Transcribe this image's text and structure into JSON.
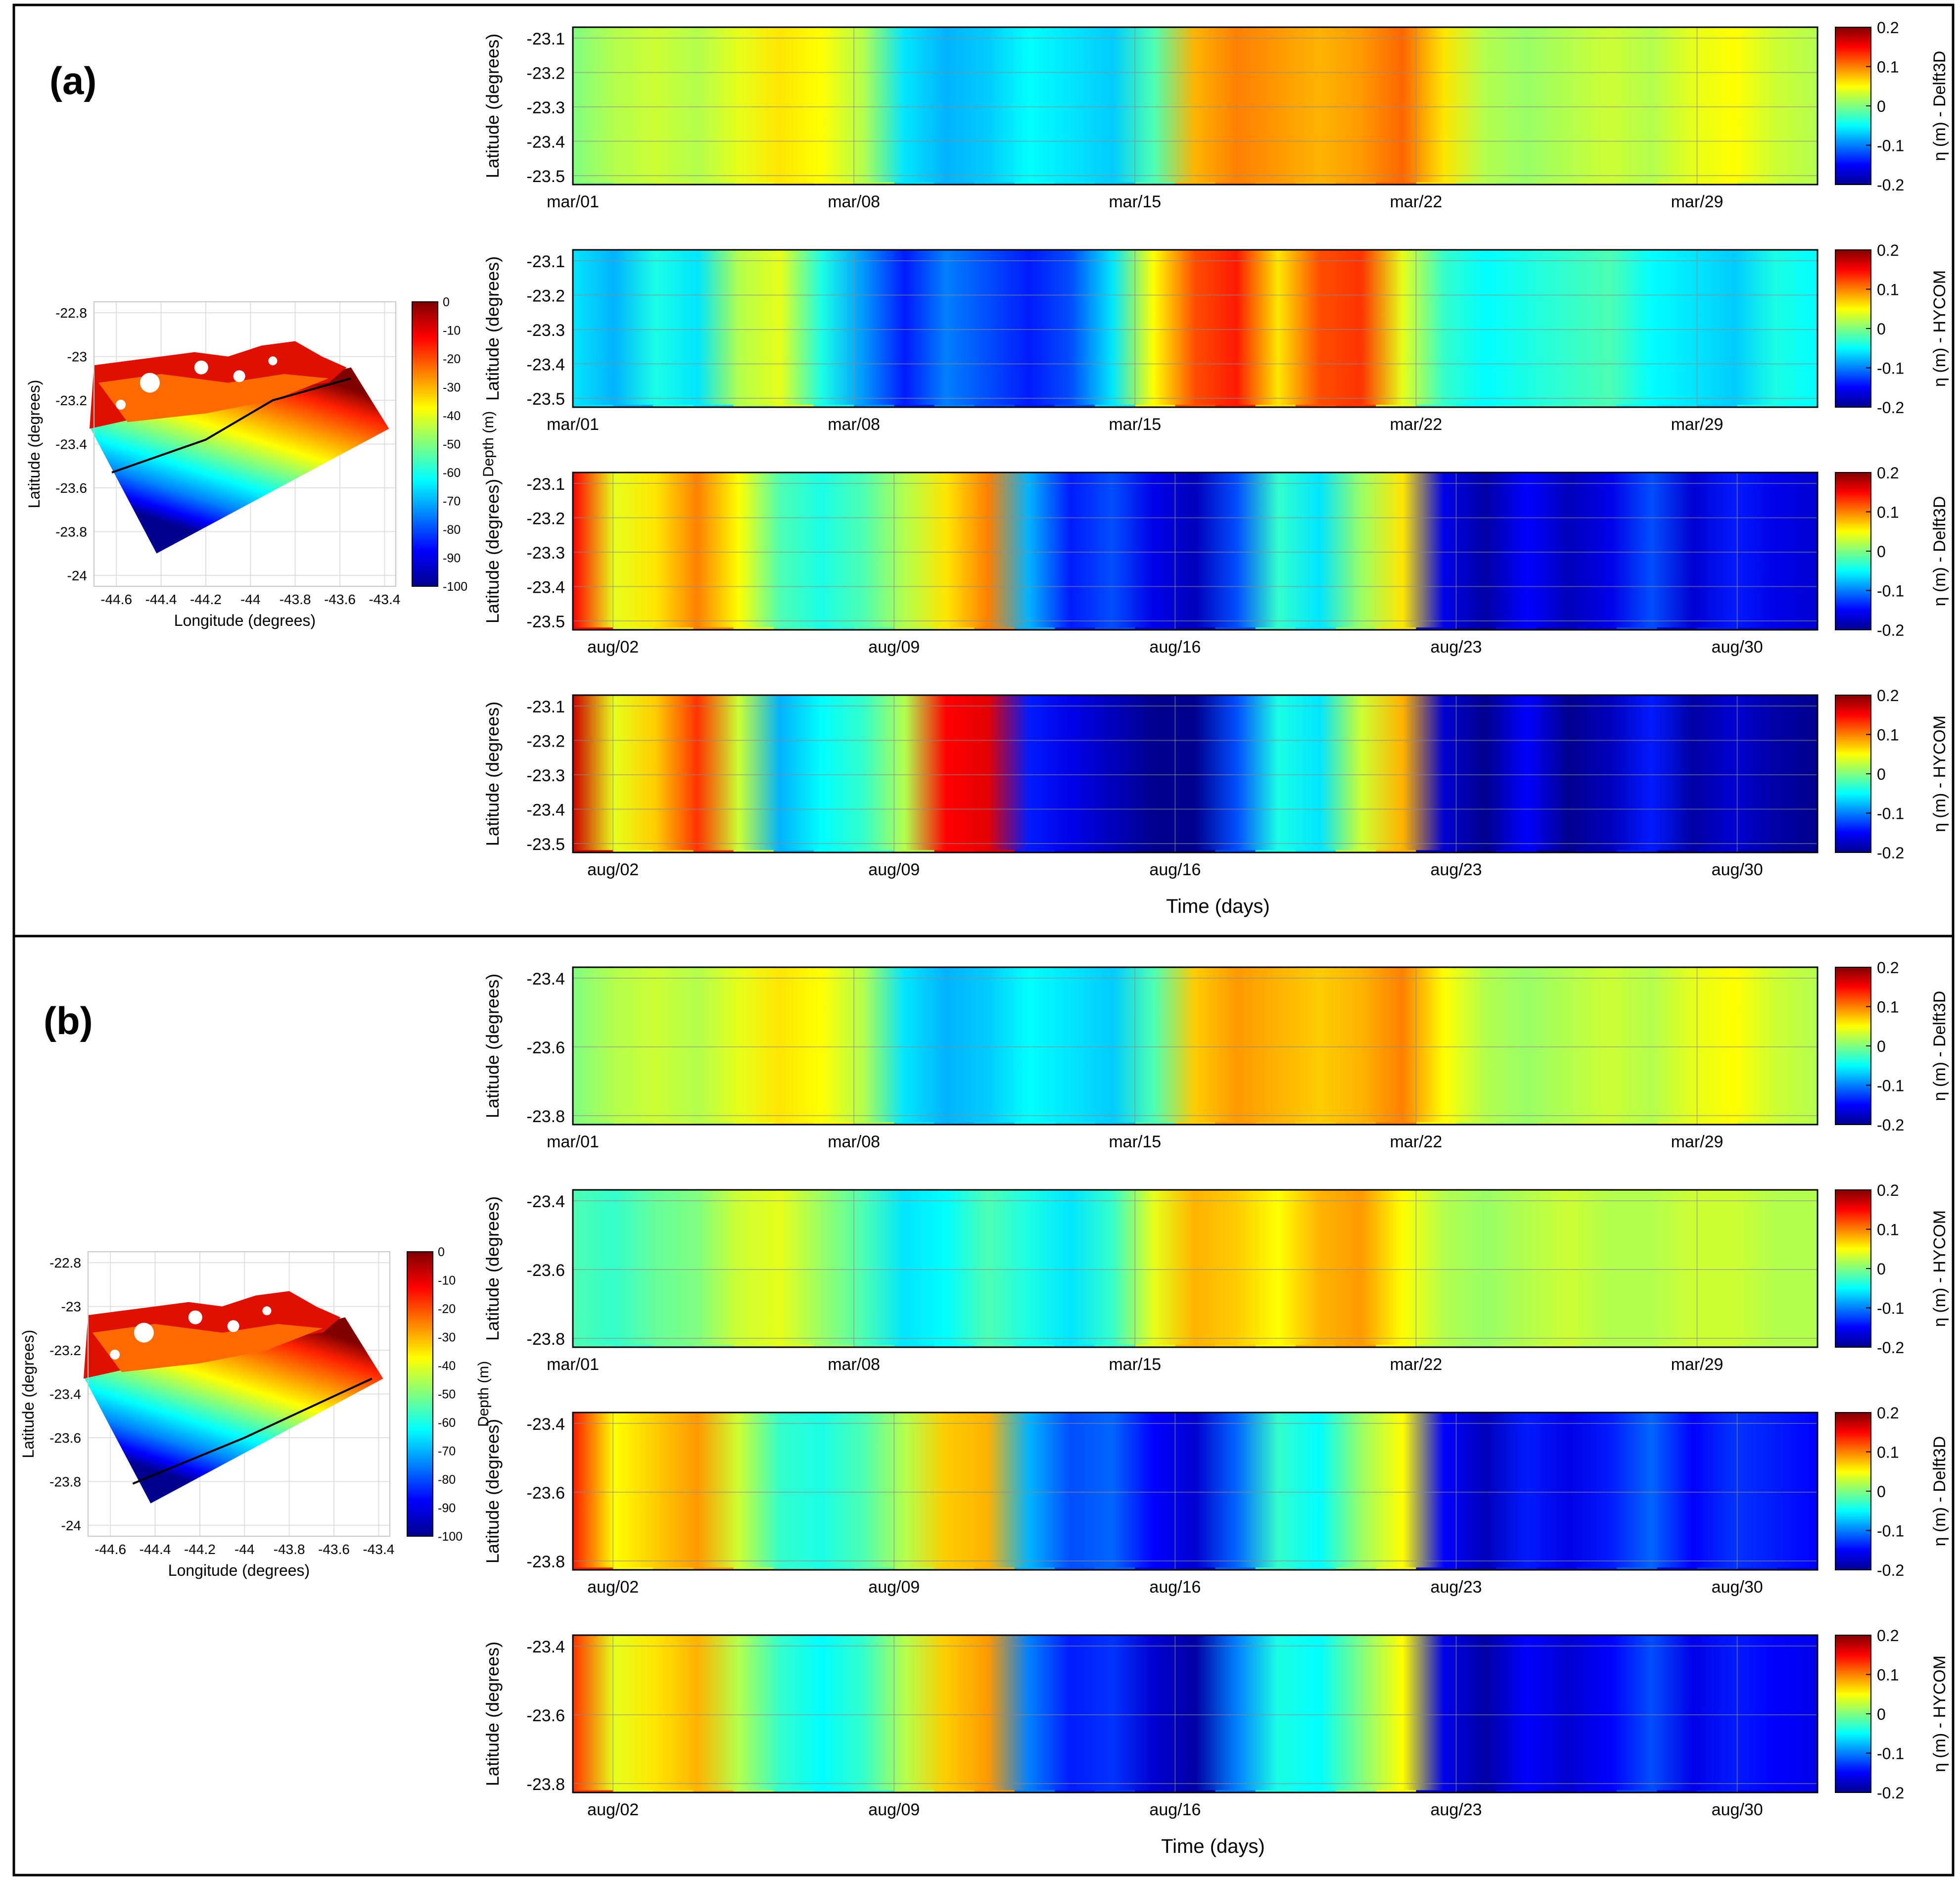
{
  "colors": {
    "frame": "#000000",
    "background": "#ffffff",
    "grid": "#8c8c8c",
    "colormap": [
      "#00008f",
      "#0000ff",
      "#0080ff",
      "#00ffff",
      "#80ff80",
      "#ffff00",
      "#ff8000",
      "#ff0000",
      "#800000"
    ]
  },
  "panels": [
    {
      "label": "(a)",
      "map": {
        "ylabel": "Latitude (degrees)",
        "xlabel": "Longitude (degrees)",
        "x_ticks": [
          "-44.6",
          "-44.4",
          "-44.2",
          "-44",
          "-43.8",
          "-43.6",
          "-43.4"
        ],
        "y_ticks": [
          "-22.8",
          "-23",
          "-23.2",
          "-23.4",
          "-23.6",
          "-23.8",
          "-24"
        ],
        "colorbar_label": "Depth (m)",
        "colorbar_ticks": [
          "0",
          "-10",
          "-20",
          "-30",
          "-40",
          "-50",
          "-60",
          "-70",
          "-80",
          "-90",
          "-100"
        ],
        "transect": [
          [
            -44.62,
            -23.53
          ],
          [
            -44.2,
            -23.38
          ],
          [
            -43.9,
            -23.2
          ],
          [
            -43.55,
            -23.1
          ]
        ]
      }
    },
    {
      "label": "(b)",
      "map": {
        "ylabel": "Latitude (degrees)",
        "xlabel": "Longitude (degrees)",
        "x_ticks": [
          "-44.6",
          "-44.4",
          "-44.2",
          "-44",
          "-43.8",
          "-43.6",
          "-43.4"
        ],
        "y_ticks": [
          "-22.8",
          "-23",
          "-23.2",
          "-23.4",
          "-23.6",
          "-23.8",
          "-24"
        ],
        "colorbar_label": "Depth (m)",
        "colorbar_ticks": [
          "0",
          "-10",
          "-20",
          "-30",
          "-40",
          "-50",
          "-60",
          "-70",
          "-80",
          "-90",
          "-100"
        ],
        "transect": [
          [
            -44.5,
            -23.81
          ],
          [
            -44.0,
            -23.6
          ],
          [
            -43.6,
            -23.41
          ],
          [
            -43.43,
            -23.33
          ]
        ]
      }
    }
  ],
  "chart_data": [
    {
      "type": "heatmap",
      "panel": "(a)",
      "source": "Delft3D",
      "ylabel": "Latitude (degrees)",
      "cbar_label": "η (m) - Delft3D",
      "y_ticks": [
        "-23.1",
        "-23.2",
        "-23.3",
        "-23.4",
        "-23.5"
      ],
      "x_ticks": [
        "mar/01",
        "mar/08",
        "mar/15",
        "mar/22",
        "mar/29"
      ],
      "cbar_ticks": [
        "0.2",
        "0.1",
        "0",
        "-0.1",
        "-0.2"
      ],
      "clim": [
        -0.2,
        0.2
      ],
      "eta": [
        0.0,
        0.02,
        0.03,
        0.02,
        0.04,
        0.06,
        0.05,
        0.02,
        -0.06,
        -0.08,
        -0.07,
        -0.05,
        -0.06,
        -0.07,
        -0.02,
        0.08,
        0.1,
        0.09,
        0.08,
        0.09,
        0.11,
        0.06,
        0.02,
        0.01,
        0.02,
        0.03,
        0.02,
        0.04,
        0.05,
        0.03,
        0.02
      ]
    },
    {
      "type": "heatmap",
      "panel": "(a)",
      "source": "HYCOM",
      "ylabel": "Latitude (degrees)",
      "cbar_label": "η (m) - HYCOM",
      "y_ticks": [
        "-23.1",
        "-23.2",
        "-23.3",
        "-23.4",
        "-23.5"
      ],
      "x_ticks": [
        "mar/01",
        "mar/08",
        "mar/15",
        "mar/22",
        "mar/29"
      ],
      "cbar_ticks": [
        "0.2",
        "0.1",
        "0",
        "-0.1",
        "-0.2"
      ],
      "clim": [
        -0.2,
        0.2
      ],
      "eta": [
        -0.06,
        -0.08,
        -0.04,
        -0.06,
        0.02,
        0.04,
        -0.04,
        -0.09,
        -0.14,
        -0.1,
        -0.12,
        -0.14,
        -0.12,
        -0.06,
        0.05,
        0.12,
        0.14,
        0.06,
        0.12,
        0.13,
        0.04,
        -0.03,
        -0.05,
        -0.04,
        -0.03,
        -0.02,
        -0.05,
        -0.06,
        -0.07,
        -0.04,
        -0.05
      ]
    },
    {
      "type": "heatmap",
      "panel": "(a)",
      "source": "Delft3D",
      "ylabel": "Latitude (degrees)",
      "cbar_label": "η (m) - Delft3D",
      "y_ticks": [
        "-23.1",
        "-23.2",
        "-23.3",
        "-23.4",
        "-23.5"
      ],
      "x_ticks": [
        "aug/02",
        "aug/09",
        "aug/16",
        "aug/23",
        "aug/30"
      ],
      "cbar_ticks": [
        "0.2",
        "0.1",
        "0",
        "-0.1",
        "-0.2"
      ],
      "clim": [
        -0.2,
        0.2
      ],
      "eta": [
        0.15,
        0.04,
        0.06,
        0.1,
        0.05,
        -0.02,
        -0.04,
        -0.02,
        0.02,
        0.06,
        0.1,
        -0.08,
        -0.14,
        -0.12,
        -0.16,
        -0.18,
        -0.12,
        -0.03,
        -0.06,
        0.01,
        0.06,
        -0.16,
        -0.19,
        -0.15,
        -0.18,
        -0.16,
        -0.12,
        -0.17,
        -0.14,
        -0.16,
        -0.17
      ]
    },
    {
      "type": "heatmap",
      "panel": "(a)",
      "source": "HYCOM",
      "ylabel": "Latitude (degrees)",
      "cbar_label": "η (m) - HYCOM",
      "y_ticks": [
        "-23.1",
        "-23.2",
        "-23.3",
        "-23.4",
        "-23.5"
      ],
      "x_ticks": [
        "aug/02",
        "aug/09",
        "aug/16",
        "aug/23",
        "aug/30"
      ],
      "cbar_ticks": [
        "0.2",
        "0.1",
        "0",
        "-0.1",
        "-0.2"
      ],
      "clim": [
        -0.2,
        0.2
      ],
      "eta": [
        0.17,
        0.04,
        0.07,
        0.13,
        0.03,
        -0.08,
        -0.05,
        -0.03,
        0.02,
        0.15,
        0.16,
        -0.14,
        -0.16,
        -0.18,
        -0.2,
        -0.2,
        -0.12,
        -0.04,
        -0.06,
        0.03,
        0.08,
        -0.17,
        -0.2,
        -0.15,
        -0.2,
        -0.18,
        -0.14,
        -0.19,
        -0.17,
        -0.19,
        -0.2
      ]
    },
    {
      "type": "heatmap",
      "panel": "(b)",
      "source": "Delft3D",
      "ylabel": "Latitude (degrees)",
      "cbar_label": "η (m) - Delft3D",
      "y_ticks": [
        "-23.4",
        "-23.6",
        "-23.8"
      ],
      "x_ticks": [
        "mar/01",
        "mar/08",
        "mar/15",
        "mar/22",
        "mar/29"
      ],
      "cbar_ticks": [
        "0.2",
        "0.1",
        "0",
        "-0.1",
        "-0.2"
      ],
      "clim": [
        -0.2,
        0.2
      ],
      "eta": [
        0.0,
        0.02,
        0.03,
        0.02,
        0.04,
        0.06,
        0.05,
        0.02,
        -0.06,
        -0.08,
        -0.07,
        -0.05,
        -0.06,
        -0.07,
        -0.02,
        0.07,
        0.09,
        0.08,
        0.07,
        0.08,
        0.1,
        0.05,
        0.02,
        0.01,
        0.02,
        0.03,
        0.02,
        0.04,
        0.05,
        0.03,
        0.02
      ]
    },
    {
      "type": "heatmap",
      "panel": "(b)",
      "source": "HYCOM",
      "ylabel": "Latitude (degrees)",
      "cbar_label": "η (m) - HYCOM",
      "y_ticks": [
        "-23.4",
        "-23.6",
        "-23.8"
      ],
      "x_ticks": [
        "mar/01",
        "mar/08",
        "mar/15",
        "mar/22",
        "mar/29"
      ],
      "cbar_ticks": [
        "0.2",
        "0.1",
        "0",
        "-0.1",
        "-0.2"
      ],
      "clim": [
        -0.2,
        0.2
      ],
      "eta": [
        -0.02,
        -0.03,
        -0.01,
        0.0,
        0.03,
        0.04,
        0.01,
        -0.02,
        -0.06,
        -0.05,
        -0.02,
        -0.04,
        -0.06,
        -0.03,
        0.04,
        0.08,
        0.07,
        0.05,
        0.08,
        0.09,
        0.05,
        0.02,
        0.01,
        0.02,
        0.03,
        0.02,
        0.02,
        0.03,
        0.03,
        0.02,
        0.02
      ]
    },
    {
      "type": "heatmap",
      "panel": "(b)",
      "source": "Delft3D",
      "ylabel": "Latitude (degrees)",
      "cbar_label": "η (m) - Delft3D",
      "y_ticks": [
        "-23.4",
        "-23.6",
        "-23.8"
      ],
      "x_ticks": [
        "aug/02",
        "aug/09",
        "aug/16",
        "aug/23",
        "aug/30"
      ],
      "cbar_ticks": [
        "0.2",
        "0.1",
        "0",
        "-0.1",
        "-0.2"
      ],
      "clim": [
        -0.2,
        0.2
      ],
      "eta": [
        0.14,
        0.05,
        0.07,
        0.09,
        0.03,
        -0.03,
        -0.04,
        -0.02,
        0.02,
        0.07,
        0.08,
        -0.08,
        -0.12,
        -0.11,
        -0.15,
        -0.17,
        -0.11,
        -0.03,
        -0.05,
        0.01,
        0.05,
        -0.15,
        -0.18,
        -0.14,
        -0.16,
        -0.14,
        -0.11,
        -0.15,
        -0.13,
        -0.14,
        -0.15
      ]
    },
    {
      "type": "heatmap",
      "panel": "(b)",
      "source": "HYCOM",
      "ylabel": "Latitude (degrees)",
      "cbar_label": "η (m) - HYCOM",
      "y_ticks": [
        "-23.4",
        "-23.6",
        "-23.8"
      ],
      "x_ticks": [
        "aug/02",
        "aug/09",
        "aug/16",
        "aug/23",
        "aug/30"
      ],
      "cbar_ticks": [
        "0.2",
        "0.1",
        "0",
        "-0.1",
        "-0.2"
      ],
      "clim": [
        -0.2,
        0.2
      ],
      "eta": [
        0.13,
        0.04,
        0.06,
        0.08,
        0.02,
        -0.03,
        -0.05,
        -0.03,
        0.02,
        0.07,
        0.09,
        -0.1,
        -0.14,
        -0.13,
        -0.17,
        -0.19,
        -0.1,
        -0.04,
        -0.05,
        0.0,
        0.05,
        -0.16,
        -0.19,
        -0.15,
        -0.17,
        -0.15,
        -0.12,
        -0.16,
        -0.14,
        -0.15,
        -0.16
      ]
    }
  ],
  "time_axis_label": "Time (days)"
}
